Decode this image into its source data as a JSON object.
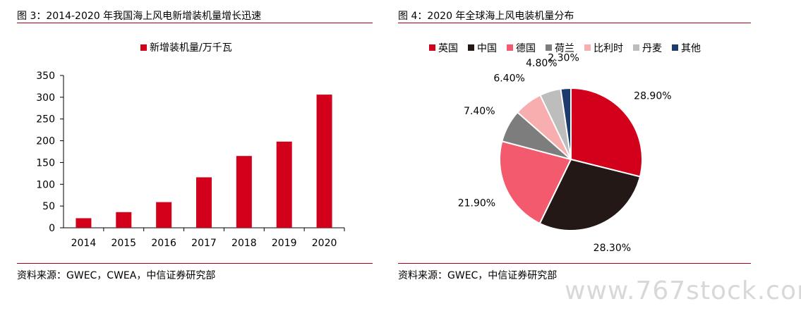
{
  "left": {
    "title": "图 3：2014-2020 年我国海上风电新增装机量增长迅速",
    "source": "资料来源：GWEC，CWEA，中信证券研究部"
  },
  "right": {
    "title": "图 4：2020 年全球海上风电装机量分布",
    "source": "资料来源：GWEC，中信证券研究部"
  },
  "watermark": "www.767stock.com",
  "colors": {
    "rule": "#b00018",
    "bar": "#d3001b",
    "pie": [
      "#d3001b",
      "#231815",
      "#f35a6e",
      "#7d7d7d",
      "#f8aeae",
      "#bdbdbd",
      "#1d3b6b"
    ]
  },
  "chart_data": [
    {
      "type": "bar",
      "title": "",
      "legend": "新增装机量/万千瓦",
      "categories": [
        "2014",
        "2015",
        "2016",
        "2017",
        "2018",
        "2019",
        "2020"
      ],
      "values": [
        22,
        36,
        59,
        116,
        165,
        198,
        306
      ],
      "ylim": [
        0,
        350
      ],
      "yticks": [
        0,
        50,
        100,
        150,
        200,
        250,
        300,
        350
      ],
      "xlabel": "",
      "ylabel": ""
    },
    {
      "type": "pie",
      "title": "",
      "labels": [
        "英国",
        "中国",
        "德国",
        "荷兰",
        "比利时",
        "丹麦",
        "其他"
      ],
      "values": [
        28.9,
        28.3,
        21.9,
        7.4,
        6.4,
        4.8,
        2.3
      ],
      "value_labels": [
        "28.90%",
        "28.30%",
        "21.90%",
        "7.40%",
        "6.40%",
        "4.80%",
        "2.30%"
      ]
    }
  ]
}
